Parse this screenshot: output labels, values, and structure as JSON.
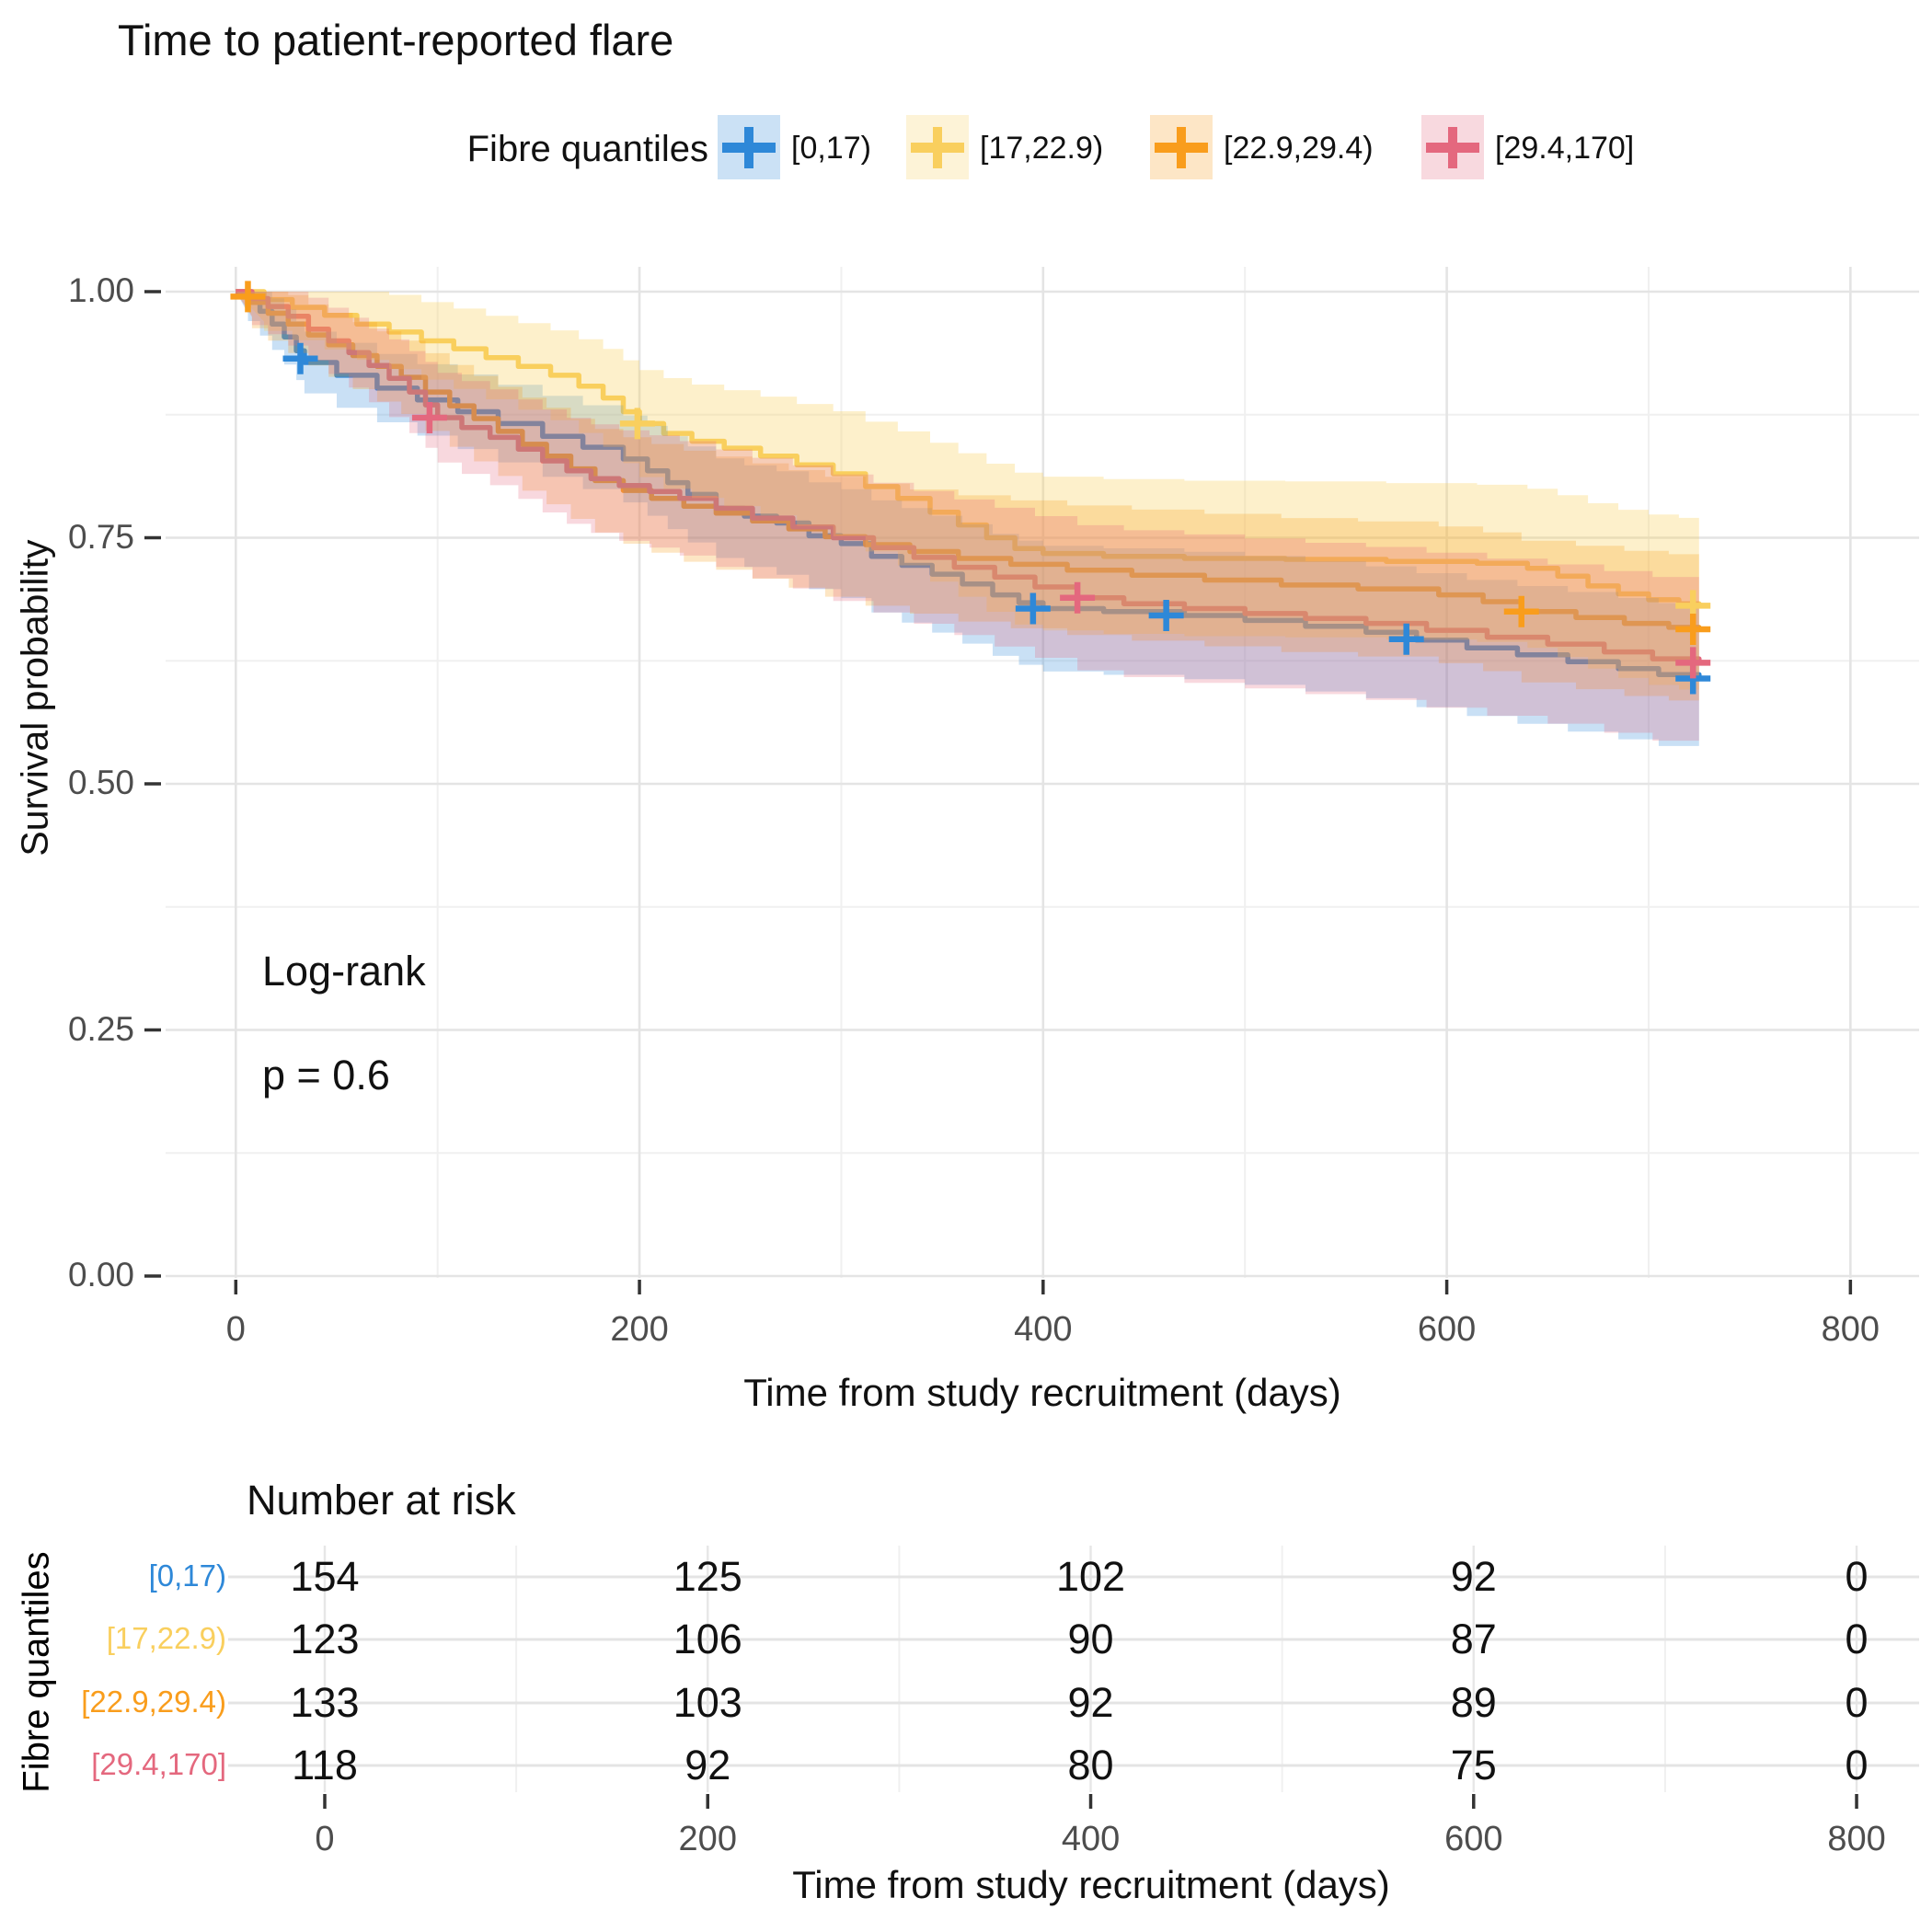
{
  "title": "Time to patient-reported flare",
  "legend": {
    "title": "Fibre quantiles",
    "items": [
      {
        "label": "[0,17)",
        "color": "#2E88D8"
      },
      {
        "label": "[17,22.9)",
        "color": "#F9CF5E"
      },
      {
        "label": "[22.9,29.4)",
        "color": "#F99D1C"
      },
      {
        "label": "[29.4,170]",
        "color": "#E4687E"
      }
    ]
  },
  "annotation": {
    "line1": "Log-rank",
    "line2": "p = 0.6"
  },
  "axes": {
    "y_label": "Survival probability",
    "x_label": "Time from study recruitment (days)",
    "y_ticks": [
      "1.00",
      "0.75",
      "0.50",
      "0.25",
      "0.00"
    ],
    "x_ticks": [
      "0",
      "200",
      "400",
      "600",
      "800"
    ]
  },
  "risk_table": {
    "title": "Number at risk",
    "axis_label": "Fibre quantiles",
    "x_label": "Time from study recruitment (days)",
    "x_ticks": [
      "0",
      "200",
      "400",
      "600",
      "800"
    ],
    "rows": [
      {
        "label": "[0,17)",
        "color": "#2E88D8",
        "values": [
          "154",
          "125",
          "102",
          "92",
          "0"
        ]
      },
      {
        "label": "[17,22.9)",
        "color": "#F9CF5E",
        "values": [
          "123",
          "106",
          "90",
          "87",
          "0"
        ]
      },
      {
        "label": "[22.9,29.4)",
        "color": "#F99D1C",
        "values": [
          "133",
          "103",
          "92",
          "89",
          "0"
        ]
      },
      {
        "label": "[29.4,170]",
        "color": "#E4687E",
        "values": [
          "118",
          "92",
          "80",
          "75",
          "0"
        ]
      }
    ]
  },
  "chart_data": {
    "type": "line",
    "subtype": "kaplan-meier-step",
    "title": "Time to patient-reported flare",
    "xlabel": "Time from study recruitment (days)",
    "ylabel": "Survival probability",
    "xlim": [
      0,
      800
    ],
    "ylim": [
      0.0,
      1.0
    ],
    "x_major_ticks": [
      0,
      200,
      400,
      600,
      800
    ],
    "y_major_ticks": [
      0.0,
      0.25,
      0.5,
      0.75,
      1.0
    ],
    "grid": true,
    "legend_position": "top",
    "logrank_p": 0.6,
    "series": [
      {
        "name": "[0,17)",
        "color": "#2E88D8",
        "band_mult": 1.0,
        "points": [
          [
            0,
            1.0
          ],
          [
            6,
            0.993
          ],
          [
            12,
            0.98
          ],
          [
            18,
            0.967
          ],
          [
            24,
            0.954
          ],
          [
            30,
            0.94
          ],
          [
            34,
            0.928
          ],
          [
            50,
            0.915
          ],
          [
            70,
            0.902
          ],
          [
            90,
            0.89
          ],
          [
            110,
            0.878
          ],
          [
            130,
            0.866
          ],
          [
            152,
            0.853
          ],
          [
            172,
            0.842
          ],
          [
            192,
            0.83
          ],
          [
            204,
            0.818
          ],
          [
            214,
            0.806
          ],
          [
            224,
            0.794
          ],
          [
            238,
            0.78
          ],
          [
            252,
            0.772
          ],
          [
            268,
            0.765
          ],
          [
            284,
            0.752
          ],
          [
            300,
            0.744
          ],
          [
            315,
            0.731
          ],
          [
            330,
            0.722
          ],
          [
            345,
            0.713
          ],
          [
            360,
            0.703
          ],
          [
            375,
            0.692
          ],
          [
            388,
            0.684
          ],
          [
            400,
            0.678
          ],
          [
            430,
            0.675
          ],
          [
            470,
            0.671
          ],
          [
            500,
            0.666
          ],
          [
            530,
            0.66
          ],
          [
            560,
            0.654
          ],
          [
            585,
            0.646
          ],
          [
            610,
            0.638
          ],
          [
            635,
            0.631
          ],
          [
            660,
            0.624
          ],
          [
            685,
            0.617
          ],
          [
            705,
            0.611
          ],
          [
            725,
            0.607
          ]
        ],
        "censors": [
          [
            32,
            0.932
          ],
          [
            395,
            0.678
          ],
          [
            461,
            0.671
          ],
          [
            580,
            0.647
          ],
          [
            722,
            0.607
          ]
        ]
      },
      {
        "name": "[17,22.9)",
        "color": "#F9CF5E",
        "band_mult": 1.38,
        "points": [
          [
            0,
            1.0
          ],
          [
            14,
            0.992
          ],
          [
            28,
            0.984
          ],
          [
            44,
            0.976
          ],
          [
            60,
            0.967
          ],
          [
            76,
            0.959
          ],
          [
            92,
            0.95
          ],
          [
            108,
            0.942
          ],
          [
            124,
            0.933
          ],
          [
            140,
            0.924
          ],
          [
            156,
            0.915
          ],
          [
            170,
            0.904
          ],
          [
            182,
            0.892
          ],
          [
            192,
            0.878
          ],
          [
            200,
            0.866
          ],
          [
            212,
            0.856
          ],
          [
            226,
            0.848
          ],
          [
            242,
            0.841
          ],
          [
            260,
            0.833
          ],
          [
            278,
            0.824
          ],
          [
            296,
            0.815
          ],
          [
            312,
            0.802
          ],
          [
            328,
            0.79
          ],
          [
            344,
            0.776
          ],
          [
            358,
            0.763
          ],
          [
            372,
            0.75
          ],
          [
            386,
            0.739
          ],
          [
            400,
            0.734
          ],
          [
            430,
            0.731
          ],
          [
            470,
            0.729
          ],
          [
            520,
            0.728
          ],
          [
            570,
            0.726
          ],
          [
            615,
            0.724
          ],
          [
            640,
            0.719
          ],
          [
            655,
            0.711
          ],
          [
            670,
            0.701
          ],
          [
            685,
            0.693
          ],
          [
            700,
            0.687
          ],
          [
            715,
            0.683
          ],
          [
            725,
            0.681
          ]
        ],
        "censors": [
          [
            199,
            0.866
          ],
          [
            722,
            0.681
          ]
        ]
      },
      {
        "name": "[22.9,29.4)",
        "color": "#F99D1C",
        "band_mult": 1.12,
        "points": [
          [
            0,
            1.0
          ],
          [
            8,
            0.989
          ],
          [
            16,
            0.978
          ],
          [
            26,
            0.967
          ],
          [
            36,
            0.956
          ],
          [
            46,
            0.946
          ],
          [
            58,
            0.935
          ],
          [
            70,
            0.924
          ],
          [
            82,
            0.913
          ],
          [
            94,
            0.898
          ],
          [
            106,
            0.884
          ],
          [
            118,
            0.871
          ],
          [
            130,
            0.858
          ],
          [
            142,
            0.845
          ],
          [
            154,
            0.833
          ],
          [
            166,
            0.82
          ],
          [
            178,
            0.808
          ],
          [
            192,
            0.798
          ],
          [
            206,
            0.79
          ],
          [
            222,
            0.782
          ],
          [
            238,
            0.775
          ],
          [
            256,
            0.767
          ],
          [
            274,
            0.759
          ],
          [
            292,
            0.751
          ],
          [
            312,
            0.743
          ],
          [
            334,
            0.736
          ],
          [
            358,
            0.729
          ],
          [
            384,
            0.723
          ],
          [
            412,
            0.717
          ],
          [
            444,
            0.712
          ],
          [
            480,
            0.707
          ],
          [
            518,
            0.702
          ],
          [
            556,
            0.698
          ],
          [
            596,
            0.692
          ],
          [
            618,
            0.685
          ],
          [
            637,
            0.675
          ],
          [
            664,
            0.669
          ],
          [
            688,
            0.663
          ],
          [
            710,
            0.659
          ],
          [
            725,
            0.657
          ]
        ],
        "censors": [
          [
            6,
            0.995
          ],
          [
            637,
            0.675
          ],
          [
            722,
            0.657
          ]
        ]
      },
      {
        "name": "[29.4,170]",
        "color": "#E4687E",
        "band_mult": 1.18,
        "points": [
          [
            0,
            1.0
          ],
          [
            8,
            0.993
          ],
          [
            16,
            0.985
          ],
          [
            26,
            0.975
          ],
          [
            36,
            0.962
          ],
          [
            46,
            0.95
          ],
          [
            56,
            0.938
          ],
          [
            66,
            0.925
          ],
          [
            76,
            0.912
          ],
          [
            86,
            0.898
          ],
          [
            94,
            0.885
          ],
          [
            100,
            0.872
          ],
          [
            112,
            0.862
          ],
          [
            126,
            0.852
          ],
          [
            140,
            0.84
          ],
          [
            152,
            0.828
          ],
          [
            164,
            0.818
          ],
          [
            176,
            0.81
          ],
          [
            190,
            0.803
          ],
          [
            205,
            0.797
          ],
          [
            220,
            0.79
          ],
          [
            238,
            0.78
          ],
          [
            256,
            0.77
          ],
          [
            276,
            0.761
          ],
          [
            296,
            0.75
          ],
          [
            316,
            0.74
          ],
          [
            336,
            0.73
          ],
          [
            356,
            0.72
          ],
          [
            376,
            0.71
          ],
          [
            396,
            0.7
          ],
          [
            417,
            0.689
          ],
          [
            440,
            0.683
          ],
          [
            470,
            0.678
          ],
          [
            500,
            0.673
          ],
          [
            530,
            0.668
          ],
          [
            560,
            0.663
          ],
          [
            590,
            0.656
          ],
          [
            620,
            0.649
          ],
          [
            650,
            0.642
          ],
          [
            678,
            0.634
          ],
          [
            702,
            0.627
          ],
          [
            725,
            0.623
          ]
        ],
        "censors": [
          [
            96,
            0.872
          ],
          [
            417,
            0.689
          ],
          [
            722,
            0.623
          ]
        ]
      }
    ],
    "risk_table": {
      "times": [
        0,
        200,
        400,
        600,
        800
      ],
      "groups": [
        "[0,17)",
        "[17,22.9)",
        "[22.9,29.4)",
        "[29.4,170]"
      ],
      "counts": [
        [
          154,
          125,
          102,
          92,
          0
        ],
        [
          123,
          106,
          90,
          87,
          0
        ],
        [
          133,
          103,
          92,
          89,
          0
        ],
        [
          118,
          92,
          80,
          75,
          0
        ]
      ]
    }
  }
}
